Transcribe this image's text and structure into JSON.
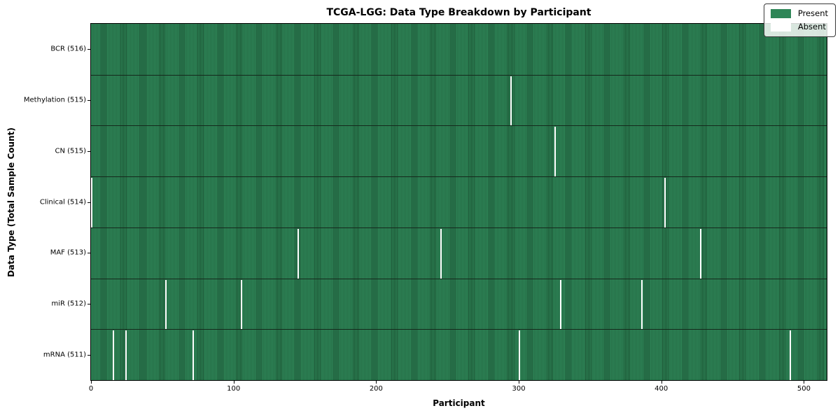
{
  "colors": {
    "present": "#2e8657",
    "present_stripe_dark": "#1c5334",
    "absent": "#ffffff",
    "row_separator": "#15291c",
    "axis": "#000000",
    "legend_border": "#3a3a3a"
  },
  "chart_data": {
    "type": "heatmap",
    "title": "TCGA-LGG: Data Type Breakdown by Participant",
    "xlabel": "Participant",
    "ylabel": "Data Type (Total Sample Count)",
    "x_ticks": [
      0,
      100,
      200,
      300,
      400,
      500
    ],
    "x_max": 516,
    "n_participants": 516,
    "grid": false,
    "legend_position": "upper right",
    "legend": [
      {
        "label": "Present",
        "color": "#2e8657"
      },
      {
        "label": "Absent",
        "color": "#ffffff"
      }
    ],
    "rows": [
      {
        "label": "BCR (516)",
        "present_count": 516,
        "absent_participants": []
      },
      {
        "label": "Methylation (515)",
        "present_count": 515,
        "absent_participants": [
          294
        ]
      },
      {
        "label": "CN (515)",
        "present_count": 515,
        "absent_participants": [
          325
        ]
      },
      {
        "label": "Clinical (514)",
        "present_count": 514,
        "absent_participants": [
          0,
          402
        ]
      },
      {
        "label": "MAF (513)",
        "present_count": 513,
        "absent_participants": [
          145,
          245,
          427
        ]
      },
      {
        "label": "miR (512)",
        "present_count": 512,
        "absent_participants": [
          52,
          105,
          329,
          386
        ]
      },
      {
        "label": "mRNA (511)",
        "present_count": 511,
        "absent_participants": [
          15,
          24,
          71,
          300,
          490
        ]
      }
    ]
  }
}
